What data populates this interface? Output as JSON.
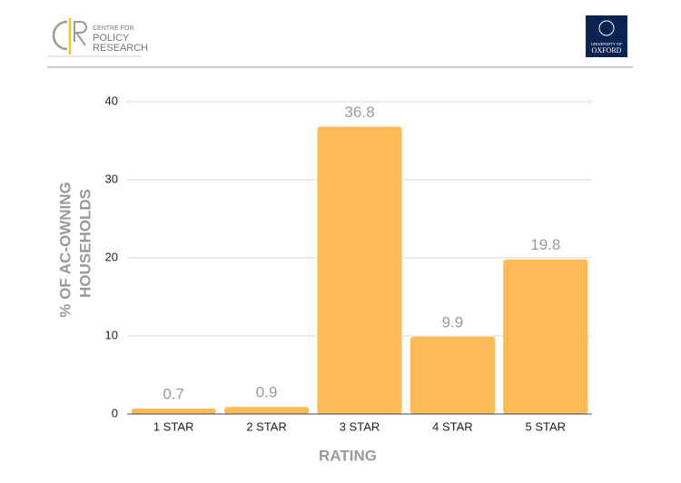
{
  "header": {
    "cpr_lines": [
      "CENTRE FOR",
      "POLICY",
      "RESEARCH"
    ],
    "oxford_lines": [
      "UNIVERSITY OF",
      "OXFORD"
    ]
  },
  "chart_data": {
    "type": "bar",
    "categories": [
      "1 STAR",
      "2 STAR",
      "3 STAR",
      "4 STAR",
      "5 STAR"
    ],
    "values": [
      0.7,
      0.9,
      36.8,
      9.9,
      19.8
    ],
    "color": "#fdbb58",
    "ylim": [
      0,
      40
    ],
    "yticks": [
      0,
      10,
      20,
      30,
      40
    ],
    "grid": true,
    "ylabel": [
      "% OF AC-OWNING",
      "HOUSEHOLDS"
    ],
    "xlabel": "RATING"
  }
}
